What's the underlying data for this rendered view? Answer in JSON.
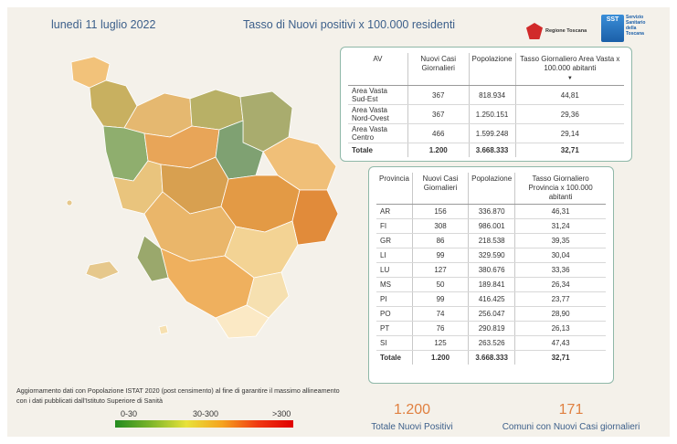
{
  "header": {
    "date": "lunedì 11 luglio 2022",
    "title": "Tasso di Nuovi positivi x 100.000 residenti"
  },
  "logos": {
    "regione": "Regione Toscana",
    "sst": "SST",
    "sst_caption": "Servizio Sanitario della Toscana"
  },
  "colors": {
    "accent_blue": "#3c5f8a",
    "kpi_orange": "#e08040",
    "card_border": "#8fb8a8",
    "low": "#238b1f",
    "mid": "#e8e23a",
    "high": "#e00000"
  },
  "av_table": {
    "headers": [
      "AV",
      "Nuovi Casi Giornalieri",
      "Popolazione",
      "Tasso Giornaliero Area Vasta x 100.000 abitanti"
    ],
    "rows": [
      [
        "Area Vasta Sud-Est",
        "367",
        "818.934",
        "44,81"
      ],
      [
        "Area Vasta Nord-Ovest",
        "367",
        "1.250.151",
        "29,36"
      ],
      [
        "Area Vasta Centro",
        "466",
        "1.599.248",
        "29,14"
      ]
    ],
    "total": [
      "Totale",
      "1.200",
      "3.668.333",
      "32,71"
    ]
  },
  "prov_table": {
    "headers": [
      "Provincia",
      "Nuovi Casi Giornalieri",
      "Popolazione",
      "Tasso Giornaliero Provincia x 100.000 abitanti"
    ],
    "rows": [
      [
        "AR",
        "156",
        "336.870",
        "46,31"
      ],
      [
        "FI",
        "308",
        "986.001",
        "31,24"
      ],
      [
        "GR",
        "86",
        "218.538",
        "39,35"
      ],
      [
        "LI",
        "99",
        "329.590",
        "30,04"
      ],
      [
        "LU",
        "127",
        "380.676",
        "33,36"
      ],
      [
        "MS",
        "50",
        "189.841",
        "26,34"
      ],
      [
        "PI",
        "99",
        "416.425",
        "23,77"
      ],
      [
        "PO",
        "74",
        "256.047",
        "28,90"
      ],
      [
        "PT",
        "76",
        "290.819",
        "26,13"
      ],
      [
        "SI",
        "125",
        "263.526",
        "47,43"
      ]
    ],
    "total": [
      "Totale",
      "1.200",
      "3.668.333",
      "32,71"
    ]
  },
  "note": "Aggiornamento dati con Popolazione ISTAT 2020 (post censimento) al fine di garantire il massimo allineamento con i dati pubblicati dall'Istituto Superiore di Sanità",
  "legend": {
    "low": "0-30",
    "mid": "30-300",
    "high": ">300"
  },
  "kpis": [
    {
      "value": "1.200",
      "label": "Totale Nuovi Positivi"
    },
    {
      "value": "171",
      "label": "Comuni con Nuovi Casi giornalieri"
    }
  ]
}
